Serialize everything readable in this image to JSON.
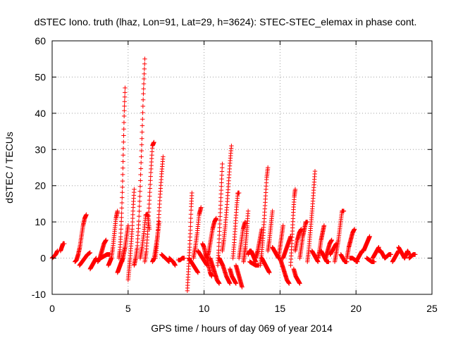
{
  "chart_data": {
    "type": "scatter",
    "title": "dSTEC Iono. truth (lhaz, Lon=91, Lat=29, h=3624): STEC-STEC_elemax in phase cont.",
    "xlabel": "GPS time / hours of day 069 of year 2014",
    "ylabel": "dSTEC  / TECUs",
    "xlim": [
      0,
      25
    ],
    "ylim": [
      -10,
      60
    ],
    "xticks": [
      0,
      5,
      10,
      15,
      20,
      25
    ],
    "yticks": [
      -10,
      0,
      10,
      20,
      30,
      40,
      50,
      60
    ],
    "grid": true,
    "legend": "none",
    "marker": "+",
    "color": "#ff0000",
    "arcs": [
      {
        "t0": 0.0,
        "t1": 0.35,
        "v": [
          0,
          0.5,
          1,
          2
        ]
      },
      {
        "t0": 0.55,
        "t1": 0.8,
        "v": [
          2,
          3,
          4,
          4
        ]
      },
      {
        "t0": 1.5,
        "t1": 2.25,
        "v": [
          -1,
          -0.5,
          1,
          3,
          6,
          9,
          11,
          12
        ]
      },
      {
        "t0": 1.8,
        "t1": 2.5,
        "v": [
          -2,
          -1,
          0,
          1,
          1.5
        ]
      },
      {
        "t0": 2.5,
        "t1": 2.9,
        "v": [
          -3,
          -2,
          -1,
          0
        ]
      },
      {
        "t0": 3.0,
        "t1": 3.55,
        "v": [
          -1,
          0,
          2,
          4,
          5
        ]
      },
      {
        "t0": 3.2,
        "t1": 3.8,
        "v": [
          0,
          0.5,
          1,
          1
        ]
      },
      {
        "t0": 3.7,
        "t1": 4.3,
        "v": [
          -2,
          -1,
          0,
          3,
          7,
          11,
          13
        ]
      },
      {
        "t0": 4.3,
        "t1": 4.65,
        "v": [
          -4,
          -3,
          -2,
          -1,
          0
        ]
      },
      {
        "t0": 4.4,
        "t1": 4.8,
        "v": [
          0,
          2,
          6,
          12,
          20,
          30,
          40,
          47
        ]
      },
      {
        "t0": 4.6,
        "t1": 5.0,
        "v": [
          -1,
          1,
          3,
          6,
          9
        ]
      },
      {
        "t0": 5.0,
        "t1": 5.4,
        "v": [
          -6,
          -3,
          0,
          4,
          8,
          14,
          19
        ]
      },
      {
        "t0": 5.4,
        "t1": 6.1,
        "v": [
          -2,
          0,
          3,
          10,
          20,
          32,
          45,
          55
        ]
      },
      {
        "t0": 5.8,
        "t1": 6.4,
        "v": [
          0,
          3,
          7,
          12,
          12,
          8
        ]
      },
      {
        "t0": 6.1,
        "t1": 6.7,
        "v": [
          -1,
          2,
          8,
          16,
          24,
          31,
          32
        ]
      },
      {
        "t0": 6.6,
        "t1": 7.05,
        "v": [
          -1,
          0,
          3,
          6,
          10
        ]
      },
      {
        "t0": 6.8,
        "t1": 7.3,
        "v": [
          0,
          4,
          10,
          17,
          23,
          28
        ]
      },
      {
        "t0": 7.2,
        "t1": 7.7,
        "v": [
          1,
          0.5,
          0,
          -0.5,
          -1
        ]
      },
      {
        "t0": 7.7,
        "t1": 8.1,
        "v": [
          0,
          -0.5,
          -1,
          -2
        ]
      },
      {
        "t0": 8.3,
        "t1": 8.7,
        "v": [
          -0.5,
          -0.5,
          0,
          0
        ]
      },
      {
        "t0": 8.9,
        "t1": 9.2,
        "v": [
          -9,
          -5,
          -1,
          3,
          8,
          14,
          18
        ]
      },
      {
        "t0": 9.0,
        "t1": 9.6,
        "v": [
          0,
          -1,
          -2,
          -3,
          -4
        ]
      },
      {
        "t0": 9.3,
        "t1": 9.8,
        "v": [
          0,
          3,
          7,
          12,
          14
        ]
      },
      {
        "t0": 9.6,
        "t1": 10.2,
        "v": [
          2,
          1,
          0,
          -1,
          -2
        ]
      },
      {
        "t0": 9.9,
        "t1": 10.5,
        "v": [
          4,
          3,
          1,
          0,
          -2,
          -4,
          -5
        ]
      },
      {
        "t0": 10.2,
        "t1": 10.8,
        "v": [
          0,
          2,
          5,
          8,
          10,
          11
        ]
      },
      {
        "t0": 10.4,
        "t1": 11.0,
        "v": [
          0,
          -2,
          -4,
          -6,
          -7
        ]
      },
      {
        "t0": 10.9,
        "t1": 11.2,
        "v": [
          -2,
          2,
          8,
          14,
          20,
          26
        ]
      },
      {
        "t0": 11.0,
        "t1": 11.7,
        "v": [
          0,
          -2,
          -5,
          -7
        ]
      },
      {
        "t0": 11.2,
        "t1": 11.8,
        "v": [
          2,
          5,
          9,
          14,
          20,
          26,
          31
        ]
      },
      {
        "t0": 11.7,
        "t1": 12.1,
        "v": [
          -3,
          -5,
          -6,
          -7
        ]
      },
      {
        "t0": 11.9,
        "t1": 12.3,
        "v": [
          0,
          4,
          9,
          14,
          18,
          18
        ]
      },
      {
        "t0": 12.1,
        "t1": 12.5,
        "v": [
          -2,
          -4,
          -6,
          -8
        ]
      },
      {
        "t0": 12.3,
        "t1": 12.7,
        "v": [
          0,
          4,
          8,
          10
        ]
      },
      {
        "t0": 12.6,
        "t1": 12.9,
        "v": [
          -1,
          1,
          3,
          6,
          9,
          13
        ]
      },
      {
        "t0": 12.9,
        "t1": 13.4,
        "v": [
          1,
          2,
          2,
          1,
          0,
          -1
        ]
      },
      {
        "t0": 13.0,
        "t1": 13.6,
        "v": [
          -1,
          -1.5,
          -2,
          -2
        ]
      },
      {
        "t0": 13.4,
        "t1": 13.8,
        "v": [
          0,
          2,
          5,
          8
        ]
      },
      {
        "t0": 13.7,
        "t1": 14.2,
        "v": [
          -2,
          1,
          5,
          10,
          16,
          22,
          25
        ]
      },
      {
        "t0": 13.8,
        "t1": 14.3,
        "v": [
          0,
          -1,
          -2,
          -3,
          -4
        ]
      },
      {
        "t0": 14.2,
        "t1": 14.5,
        "v": [
          2,
          5,
          9,
          13
        ]
      },
      {
        "t0": 14.5,
        "t1": 14.9,
        "v": [
          3,
          2,
          1,
          0
        ]
      },
      {
        "t0": 14.9,
        "t1": 15.2,
        "v": [
          0,
          3,
          6,
          9
        ]
      },
      {
        "t0": 15.0,
        "t1": 15.6,
        "v": [
          0,
          -2,
          -4,
          -6,
          -7
        ]
      },
      {
        "t0": 15.2,
        "t1": 15.7,
        "v": [
          0,
          2,
          4,
          6
        ]
      },
      {
        "t0": 15.7,
        "t1": 16.0,
        "v": [
          -2,
          3,
          8,
          13,
          17,
          19
        ]
      },
      {
        "t0": 15.9,
        "t1": 16.3,
        "v": [
          -3,
          -5,
          -6,
          -7
        ]
      },
      {
        "t0": 16.0,
        "t1": 16.4,
        "v": [
          2,
          5,
          7,
          8
        ]
      },
      {
        "t0": 16.3,
        "t1": 16.8,
        "v": [
          0,
          3,
          6,
          8,
          10,
          10
        ]
      },
      {
        "t0": 16.8,
        "t1": 17.3,
        "v": [
          -1,
          2,
          6,
          10,
          14,
          19,
          24
        ]
      },
      {
        "t0": 17.1,
        "t1": 17.5,
        "v": [
          2,
          1,
          0,
          -1
        ]
      },
      {
        "t0": 17.5,
        "t1": 17.9,
        "v": [
          0,
          2,
          5,
          7,
          9
        ]
      },
      {
        "t0": 17.7,
        "t1": 18.2,
        "v": [
          2,
          1,
          0,
          -1,
          -1
        ]
      },
      {
        "t0": 18.0,
        "t1": 18.4,
        "v": [
          0,
          2,
          4,
          5
        ]
      },
      {
        "t0": 18.3,
        "t1": 18.7,
        "v": [
          1,
          2,
          3,
          4
        ]
      },
      {
        "t0": 18.6,
        "t1": 19.2,
        "v": [
          -1,
          2,
          5,
          9,
          13,
          13
        ]
      },
      {
        "t0": 19.0,
        "t1": 19.4,
        "v": [
          1,
          0,
          -1,
          -1
        ]
      },
      {
        "t0": 19.4,
        "t1": 19.9,
        "v": [
          0,
          3,
          5,
          7,
          8
        ]
      },
      {
        "t0": 19.6,
        "t1": 20.1,
        "v": [
          0,
          0,
          -0.5,
          -1
        ]
      },
      {
        "t0": 20.0,
        "t1": 20.4,
        "v": [
          -1,
          0,
          1,
          2
        ]
      },
      {
        "t0": 20.5,
        "t1": 20.9,
        "v": [
          2,
          3,
          4,
          5,
          6
        ]
      },
      {
        "t0": 20.7,
        "t1": 21.2,
        "v": [
          0,
          -0.5,
          -1,
          -1
        ]
      },
      {
        "t0": 21.1,
        "t1": 21.5,
        "v": [
          0,
          1,
          2,
          3
        ]
      },
      {
        "t0": 21.5,
        "t1": 21.9,
        "v": [
          2,
          2,
          1,
          0
        ]
      },
      {
        "t0": 21.9,
        "t1": 22.3,
        "v": [
          0,
          0.5,
          1,
          1
        ]
      },
      {
        "t0": 22.4,
        "t1": 22.8,
        "v": [
          -1,
          0,
          1,
          2
        ]
      },
      {
        "t0": 22.8,
        "t1": 23.2,
        "v": [
          3,
          2,
          1,
          0
        ]
      },
      {
        "t0": 23.2,
        "t1": 23.5,
        "v": [
          0,
          1,
          2,
          1
        ]
      },
      {
        "t0": 23.5,
        "t1": 23.9,
        "v": [
          0,
          0.5,
          1,
          1
        ]
      }
    ]
  }
}
